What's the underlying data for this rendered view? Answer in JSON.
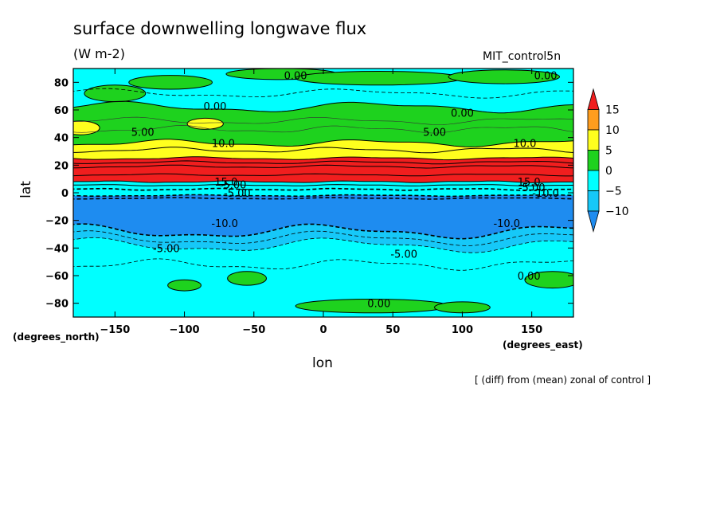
{
  "header": {
    "title": "surface downwelling longwave flux",
    "units": "(W m-2)",
    "run": "MIT_control5n",
    "note": "[ (diff) from (mean) zonal of control ]"
  },
  "chart_data": {
    "type": "heatmap",
    "title": "surface downwelling longwave flux",
    "xlabel": "lon",
    "xunit": "(degrees_east)",
    "ylabel": "lat",
    "yunit": "(degrees_north)",
    "xlim": [
      -180,
      180
    ],
    "ylim": [
      -90,
      90
    ],
    "xticks": [
      -150,
      -100,
      -50,
      0,
      50,
      100,
      150
    ],
    "yticks": [
      -80,
      -60,
      -40,
      -20,
      0,
      20,
      40,
      60,
      80
    ],
    "colorbar": {
      "levels": [
        -10,
        -5,
        0,
        5,
        10,
        15
      ],
      "colors": [
        "#1e8cf0",
        "#16c8f8",
        "#00ffff",
        "#1ed21e",
        "#ffff1e",
        "#ff9d1e",
        "#f01e1e"
      ]
    },
    "zonal_bands": [
      {
        "lat_range": [
          60,
          90
        ],
        "approx_value": "-5 to 0"
      },
      {
        "lat_range": [
          30,
          60
        ],
        "approx_value": "0 to 5"
      },
      {
        "lat_range": [
          25,
          35
        ],
        "approx_value": "5 to 10"
      },
      {
        "lat_range": [
          8,
          25
        ],
        "approx_value": "> 15"
      },
      {
        "lat_range": [
          2,
          8
        ],
        "approx_value": "mixed"
      },
      {
        "lat_range": [
          -2,
          2
        ],
        "approx_value": "-5 to 0"
      },
      {
        "lat_range": [
          -28,
          -2
        ],
        "approx_value": "-10 to -5"
      },
      {
        "lat_range": [
          -40,
          -28
        ],
        "approx_value": "-10 to -5 (lighter)"
      },
      {
        "lat_range": [
          -90,
          -40
        ],
        "approx_value": "-5 to 0"
      }
    ],
    "contour_labels": [
      {
        "text": "0.00",
        "lon": -20,
        "lat": 85
      },
      {
        "text": "0.00",
        "lon": 160,
        "lat": 85
      },
      {
        "text": "0.00",
        "lon": -78,
        "lat": 63
      },
      {
        "text": "0.00",
        "lon": 100,
        "lat": 58
      },
      {
        "text": "5.00",
        "lon": -130,
        "lat": 44
      },
      {
        "text": "5.00",
        "lon": 80,
        "lat": 44
      },
      {
        "text": "10.0",
        "lon": -72,
        "lat": 36
      },
      {
        "text": "10.0",
        "lon": 145,
        "lat": 36
      },
      {
        "text": "15.0",
        "lon": -70,
        "lat": 8
      },
      {
        "text": "15.0",
        "lon": 148,
        "lat": 8
      },
      {
        "text": "-5.00",
        "lon": -65,
        "lat": 6
      },
      {
        "text": "-5.00",
        "lon": -62,
        "lat": 0
      },
      {
        "text": "-5.00",
        "lon": 150,
        "lat": 4
      },
      {
        "text": "-10.0",
        "lon": 160,
        "lat": 0
      },
      {
        "text": "-10.0",
        "lon": -71,
        "lat": -22
      },
      {
        "text": "-10.0",
        "lon": 132,
        "lat": -22
      },
      {
        "text": "-5.00",
        "lon": -113,
        "lat": -40
      },
      {
        "text": "-5.00",
        "lon": 58,
        "lat": -44
      },
      {
        "text": "0.00",
        "lon": 148,
        "lat": -60
      },
      {
        "text": "0.00",
        "lon": 40,
        "lat": -80
      }
    ]
  }
}
